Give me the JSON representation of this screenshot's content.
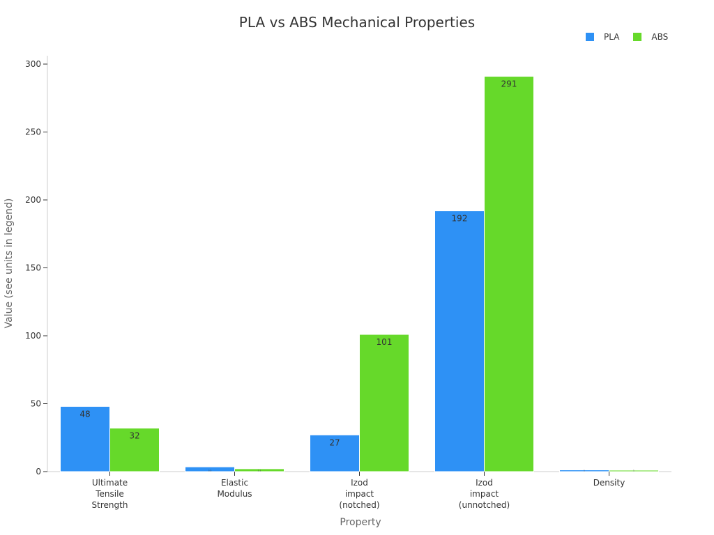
{
  "chart_data": {
    "type": "bar",
    "title": "PLA vs ABS Mechanical Properties",
    "xlabel": "Property",
    "ylabel": "Value (see units in legend)",
    "ylim": [
      0,
      300
    ],
    "yticks": [
      0,
      50,
      100,
      150,
      200,
      250,
      300
    ],
    "categories": [
      "Ultimate Tensile Strength",
      "Elastic Modulus",
      "Izod impact (notched)",
      "Izod impact (unnotched)",
      "Density"
    ],
    "category_lines": [
      [
        "Ultimate",
        "Tensile",
        "Strength"
      ],
      [
        "Elastic",
        "Modulus"
      ],
      [
        "Izod",
        "impact",
        "(notched)"
      ],
      [
        "Izod",
        "impact",
        "(unnotched)"
      ],
      [
        "Density"
      ]
    ],
    "series": [
      {
        "name": "PLA",
        "color": "#2e91f5",
        "values": [
          48,
          3.5,
          27,
          192,
          1.24
        ],
        "labels": [
          "48",
          "3.5",
          "27",
          "192",
          "1"
        ]
      },
      {
        "name": "ABS",
        "color": "#66d92a",
        "values": [
          32,
          2.1,
          101,
          291,
          1.04
        ],
        "labels": [
          "32",
          "2.1",
          "101",
          "291",
          "1"
        ]
      }
    ],
    "legend_position": "top-right",
    "grid": false
  }
}
